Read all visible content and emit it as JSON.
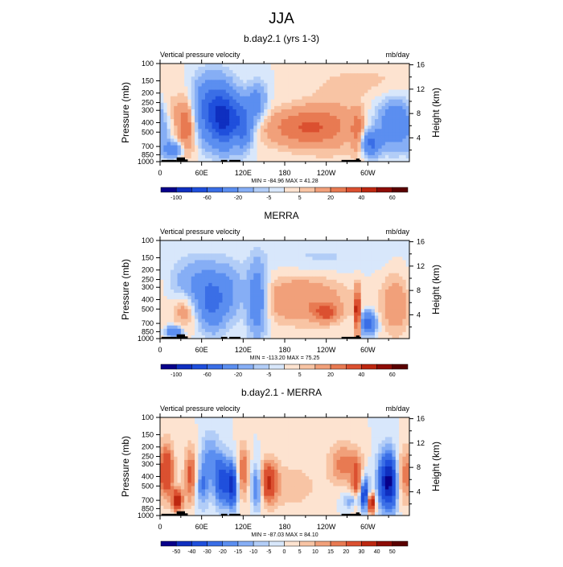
{
  "figure": {
    "season": "JJA",
    "left_subtitle": "Vertical pressure velocity",
    "right_subtitle": "mb/day",
    "y_left_label": "Pressure (mb)",
    "y_right_label": "Height (km)",
    "pressure_ticks": [
      "100",
      "150",
      "200",
      "250",
      "300",
      "400",
      "500",
      "700",
      "850",
      "1000"
    ],
    "pressure_values": [
      100,
      150,
      200,
      250,
      300,
      400,
      500,
      700,
      850,
      1000
    ],
    "height_ticks": [
      "16",
      "12",
      "8",
      "4"
    ],
    "height_values_km": [
      16,
      12,
      8,
      4
    ],
    "lon_ticks": [
      "0",
      "60E",
      "120E",
      "180",
      "120W",
      "60W"
    ],
    "lon_values": [
      0,
      60,
      120,
      180,
      240,
      300
    ],
    "lon_range": [
      0,
      360
    ]
  },
  "colors": {
    "abs_palette": [
      "#08008a",
      "#0f2fc0",
      "#1f4fdc",
      "#3a6ee6",
      "#5b8ef0",
      "#86aef5",
      "#b2cdf7",
      "#d8e7fb",
      "#fde3d0",
      "#f8c4a4",
      "#f1a07a",
      "#e87a52",
      "#db5030",
      "#bd2710",
      "#8e0c06",
      "#5a0000"
    ],
    "diff_palette": [
      "#08008a",
      "#0f2fc0",
      "#1f4fdc",
      "#3a6ee6",
      "#5b8ef0",
      "#86aef5",
      "#b2cdf7",
      "#d8e7fb",
      "#fde3d0",
      "#f8c4a4",
      "#f1a07a",
      "#e87a52",
      "#db5030",
      "#bd2710",
      "#8e0c06",
      "#5a0000"
    ]
  },
  "chart_data": [
    {
      "type": "heatmap",
      "title": "b.day2.1 (yrs 1-3)",
      "variable": "Vertical pressure velocity",
      "units": "mb/day",
      "stats_text": "MIN = -84.96   MAX =  41.28",
      "min": -84.96,
      "max": 41.28,
      "colorbar_levels": [
        -100,
        -80,
        -60,
        -40,
        -20,
        -10,
        -5,
        0,
        5,
        10,
        20,
        30,
        40,
        50,
        60
      ],
      "colorbar_labels": [
        "-100",
        "-60",
        "-20",
        "-5",
        "5",
        "20",
        "40",
        "60"
      ],
      "features": [
        {
          "lon": 18,
          "p": 750,
          "val": -35,
          "lw": 10,
          "pw": 200
        },
        {
          "lon": 38,
          "p": 420,
          "val": 35,
          "lw": 11,
          "pw": 350
        },
        {
          "lon": 15,
          "p": 280,
          "val": 8,
          "lw": 8,
          "pw": 120
        },
        {
          "lon": 75,
          "p": 300,
          "val": -55,
          "lw": 20,
          "pw": 280
        },
        {
          "lon": 95,
          "p": 380,
          "val": -60,
          "lw": 13,
          "pw": 300
        },
        {
          "lon": 120,
          "p": 420,
          "val": -45,
          "lw": 10,
          "pw": 300
        },
        {
          "lon": 140,
          "p": 250,
          "val": -28,
          "lw": 10,
          "pw": 150
        },
        {
          "lon": 108,
          "p": 600,
          "val": 10,
          "lw": 4,
          "pw": 200
        },
        {
          "lon": 205,
          "p": 450,
          "val": 28,
          "lw": 40,
          "pw": 280
        },
        {
          "lon": 250,
          "p": 400,
          "val": 10,
          "lw": 30,
          "pw": 400
        },
        {
          "lon": 285,
          "p": 500,
          "val": 20,
          "lw": 6,
          "pw": 350
        },
        {
          "lon": 305,
          "p": 650,
          "val": -45,
          "lw": 10,
          "pw": 250
        },
        {
          "lon": 340,
          "p": 420,
          "val": -40,
          "lw": 18,
          "pw": 300
        },
        {
          "lon": 300,
          "p": 150,
          "val": 6,
          "lw": 50,
          "pw": 80
        }
      ]
    },
    {
      "type": "heatmap",
      "title": "MERRA",
      "variable": "Vertical pressure velocity",
      "units": "mb/day",
      "stats_text": "MIN = -113.20   MAX =  75.25",
      "min": -113.2,
      "max": 75.25,
      "colorbar_levels": [
        -100,
        -80,
        -60,
        -40,
        -20,
        -10,
        -5,
        0,
        5,
        10,
        20,
        30,
        40,
        50,
        60
      ],
      "colorbar_labels": [
        "-100",
        "-60",
        "-20",
        "-5",
        "5",
        "20",
        "40",
        "60"
      ],
      "features": [
        {
          "lon": 20,
          "p": 850,
          "val": -40,
          "lw": 8,
          "pw": 150
        },
        {
          "lon": 35,
          "p": 500,
          "val": 20,
          "lw": 12,
          "pw": 300
        },
        {
          "lon": 55,
          "p": 300,
          "val": -25,
          "lw": 25,
          "pw": 250
        },
        {
          "lon": 75,
          "p": 450,
          "val": -35,
          "lw": 12,
          "pw": 350
        },
        {
          "lon": 100,
          "p": 350,
          "val": -20,
          "lw": 15,
          "pw": 300
        },
        {
          "lon": 140,
          "p": 400,
          "val": -40,
          "lw": 10,
          "pw": 400
        },
        {
          "lon": 205,
          "p": 400,
          "val": 20,
          "lw": 45,
          "pw": 300
        },
        {
          "lon": 240,
          "p": 550,
          "val": 30,
          "lw": 12,
          "pw": 150
        },
        {
          "lon": 285,
          "p": 550,
          "val": 55,
          "lw": 3,
          "pw": 400
        },
        {
          "lon": 300,
          "p": 700,
          "val": -50,
          "lw": 8,
          "pw": 250
        },
        {
          "lon": 340,
          "p": 450,
          "val": 18,
          "lw": 15,
          "pw": 400
        },
        {
          "lon": 230,
          "p": 150,
          "val": -6,
          "lw": 60,
          "pw": 80
        }
      ]
    },
    {
      "type": "heatmap",
      "title": "b.day2.1 - MERRA",
      "variable": "Vertical pressure velocity",
      "units": "mb/day",
      "stats_text": "MIN = -87.03   MAX =  84.10",
      "min": -87.03,
      "max": 84.1,
      "colorbar_levels": [
        -50,
        -40,
        -30,
        -20,
        -15,
        -10,
        -5,
        0,
        5,
        10,
        15,
        20,
        30,
        40,
        50
      ],
      "colorbar_labels": [
        "-50",
        "-40",
        "-30",
        "-20",
        "-15",
        "-10",
        "-5",
        "0",
        "5",
        "10",
        "15",
        "20",
        "30",
        "40",
        "50"
      ],
      "features": [
        {
          "lon": 10,
          "p": 350,
          "val": 30,
          "lw": 7,
          "pw": 300
        },
        {
          "lon": 25,
          "p": 700,
          "val": 40,
          "lw": 5,
          "pw": 250
        },
        {
          "lon": 45,
          "p": 400,
          "val": 25,
          "lw": 7,
          "pw": 350
        },
        {
          "lon": 60,
          "p": 500,
          "val": -20,
          "lw": 8,
          "pw": 350
        },
        {
          "lon": 72,
          "p": 250,
          "val": -15,
          "lw": 10,
          "pw": 200
        },
        {
          "lon": 90,
          "p": 450,
          "val": -35,
          "lw": 8,
          "pw": 350
        },
        {
          "lon": 105,
          "p": 500,
          "val": -40,
          "lw": 5,
          "pw": 350
        },
        {
          "lon": 120,
          "p": 350,
          "val": 20,
          "lw": 6,
          "pw": 300
        },
        {
          "lon": 140,
          "p": 500,
          "val": -30,
          "lw": 6,
          "pw": 350
        },
        {
          "lon": 155,
          "p": 450,
          "val": 30,
          "lw": 10,
          "pw": 300
        },
        {
          "lon": 190,
          "p": 500,
          "val": 8,
          "lw": 30,
          "pw": 400
        },
        {
          "lon": 265,
          "p": 300,
          "val": 18,
          "lw": 15,
          "pw": 200
        },
        {
          "lon": 285,
          "p": 500,
          "val": 25,
          "lw": 6,
          "pw": 400
        },
        {
          "lon": 295,
          "p": 600,
          "val": -40,
          "lw": 5,
          "pw": 350
        },
        {
          "lon": 305,
          "p": 750,
          "val": 45,
          "lw": 4,
          "pw": 250
        },
        {
          "lon": 330,
          "p": 450,
          "val": -55,
          "lw": 10,
          "pw": 400
        },
        {
          "lon": 350,
          "p": 400,
          "val": 20,
          "lw": 8,
          "pw": 350
        },
        {
          "lon": 280,
          "p": 700,
          "val": -20,
          "lw": 10,
          "pw": 200
        }
      ]
    }
  ]
}
